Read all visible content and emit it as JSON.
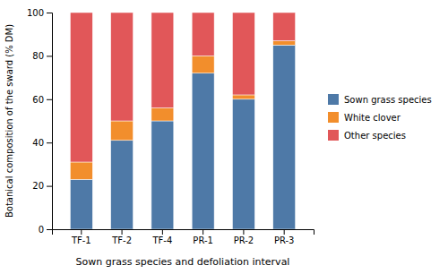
{
  "chart_data": {
    "type": "bar",
    "stacked": true,
    "categories": [
      "TF-1",
      "TF-2",
      "TF-4",
      "PR-1",
      "PR-2",
      "PR-3"
    ],
    "series": [
      {
        "name": "Sown grass species",
        "values": [
          23,
          41,
          50,
          72,
          60,
          85
        ]
      },
      {
        "name": "White clover",
        "values": [
          8,
          9,
          6,
          8,
          2,
          2
        ]
      },
      {
        "name": "Other species",
        "values": [
          69,
          50,
          44,
          20,
          38,
          13
        ]
      }
    ],
    "x_label": "Sown grass species and defoliation interval",
    "y_label": "Botanical composition of the sward (% DM)",
    "ylim": [
      0,
      100
    ],
    "yticks": [
      0,
      20,
      40,
      60,
      80,
      100
    ],
    "grid": false,
    "legend": "right"
  }
}
